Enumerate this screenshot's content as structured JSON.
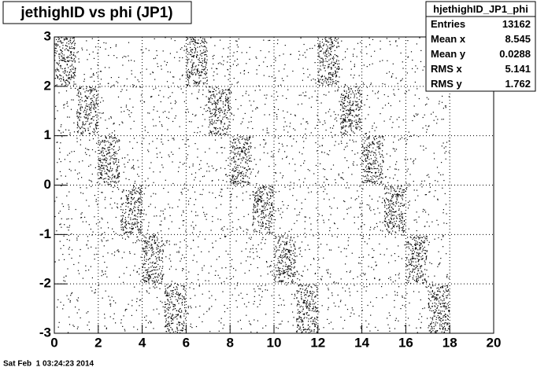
{
  "chart_data": {
    "type": "scatter2d",
    "title": "jethighID vs phi (JP1)",
    "xbins": [
      0,
      1,
      2,
      3,
      4,
      5,
      6,
      7,
      8,
      9,
      10,
      11,
      12,
      13,
      14,
      15,
      16,
      17,
      18
    ],
    "ybins": [
      -3,
      -2,
      -1,
      0,
      1,
      2,
      3
    ],
    "counts": [
      [
        40,
        45,
        55,
        50,
        60,
        480
      ],
      [
        35,
        50,
        45,
        60,
        470,
        55
      ],
      [
        40,
        55,
        60,
        490,
        45,
        50
      ],
      [
        45,
        60,
        470,
        55,
        50,
        40
      ],
      [
        50,
        480,
        60,
        45,
        55,
        35
      ],
      [
        470,
        60,
        50,
        40,
        45,
        50
      ],
      [
        45,
        40,
        55,
        50,
        60,
        490
      ],
      [
        35,
        50,
        45,
        55,
        480,
        60
      ],
      [
        40,
        45,
        60,
        470,
        50,
        55
      ],
      [
        50,
        55,
        480,
        45,
        40,
        35
      ],
      [
        45,
        470,
        50,
        60,
        55,
        40
      ],
      [
        480,
        55,
        45,
        40,
        50,
        45
      ],
      [
        40,
        50,
        45,
        55,
        60,
        470
      ],
      [
        45,
        40,
        50,
        60,
        490,
        50
      ],
      [
        35,
        55,
        60,
        480,
        45,
        40
      ],
      [
        50,
        45,
        470,
        55,
        40,
        45
      ],
      [
        40,
        480,
        55,
        50,
        45,
        35
      ],
      [
        490,
        50,
        40,
        45,
        50,
        40
      ]
    ],
    "xlim": [
      0,
      20
    ],
    "xticks": [
      0,
      2,
      4,
      6,
      8,
      10,
      12,
      14,
      16,
      18,
      20
    ],
    "ylim": [
      -3,
      3
    ],
    "yticks": [
      -3,
      -2,
      -1,
      0,
      1,
      2,
      3
    ],
    "grid": true,
    "color": "#000000",
    "stats": {
      "name": "hjethighID_JP1_phi",
      "rows": [
        [
          "Entries",
          "13162"
        ],
        [
          "Mean x",
          "8.545"
        ],
        [
          "Mean y",
          "0.0288"
        ],
        [
          "RMS x",
          "5.141"
        ],
        [
          "RMS y",
          "1.762"
        ]
      ]
    },
    "footer": "Sat Feb  1 03:24:23 2014"
  }
}
